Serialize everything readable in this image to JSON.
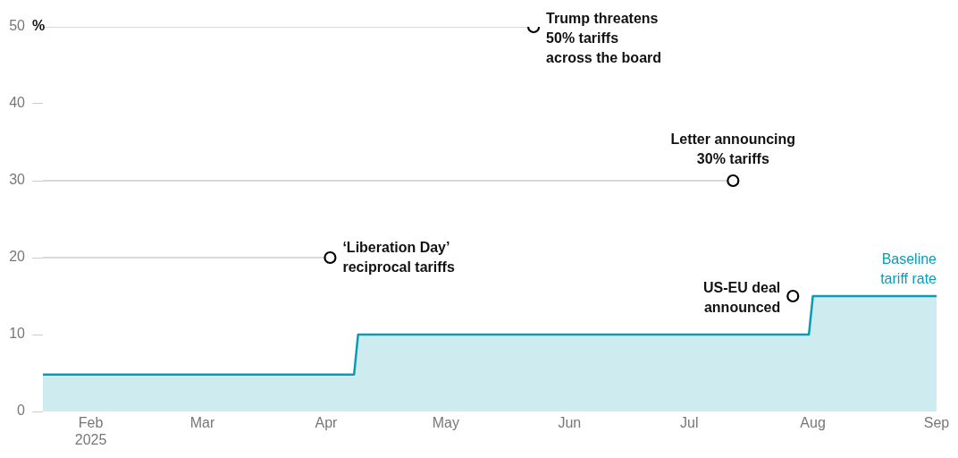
{
  "chart_data": {
    "type": "area",
    "ylabel": "%",
    "xlim": [
      "2025-01-20",
      "2025-09-01"
    ],
    "xticks": [
      {
        "value": "2025-02-01",
        "label": "Feb\n2025"
      },
      {
        "value": "2025-03-01",
        "label": "Mar"
      },
      {
        "value": "2025-04-01",
        "label": "Apr"
      },
      {
        "value": "2025-05-01",
        "label": "May"
      },
      {
        "value": "2025-06-01",
        "label": "Jun"
      },
      {
        "value": "2025-07-01",
        "label": "Jul"
      },
      {
        "value": "2025-08-01",
        "label": "Aug"
      },
      {
        "value": "2025-09-01",
        "label": "Sep"
      }
    ],
    "ylim": [
      0,
      50
    ],
    "yticks": [
      0,
      10,
      20,
      30,
      40,
      50
    ],
    "grid": false,
    "legend": false,
    "series": [
      {
        "name": "Baseline tariff rate",
        "color": "#0c9bb5",
        "x": [
          "2025-01-20",
          "2025-04-08",
          "2025-04-09",
          "2025-07-31",
          "2025-08-01",
          "2025-09-01"
        ],
        "values": [
          4.8,
          4.8,
          10,
          10,
          15,
          15
        ]
      },
      {
        "type": "line",
        "color": "#cccccc",
        "x": [
          "2025-01-20",
          "2025-04-02"
        ],
        "values": [
          20,
          20
        ]
      },
      {
        "type": "line",
        "color": "#cccccc",
        "x": [
          "2025-01-20",
          "2025-05-23"
        ],
        "values": [
          50,
          50
        ]
      },
      {
        "type": "line",
        "color": "#cccccc",
        "x": [
          "2025-01-20",
          "2025-07-12"
        ],
        "values": [
          30,
          30
        ]
      },
      {
        "type": "scatter",
        "color": "#000000",
        "marker": "circle",
        "x": [
          "2025-04-02",
          "2025-05-23",
          "2025-07-12",
          "2025-07-27"
        ],
        "values": [
          20,
          50,
          30,
          15
        ]
      }
    ],
    "annotations": [
      {
        "text": "‘Liberation Day’ reciprocal tariffs",
        "x": "2025-04-02",
        "y": 20
      },
      {
        "text": "Trump threatens 50% tariffs across the board",
        "x": "2025-05-23",
        "y": 50
      },
      {
        "text": "Letter announcing 30% tariffs",
        "x": "2025-07-12",
        "y": 30
      },
      {
        "text": "US-EU deal announced",
        "x": "2025-07-27",
        "y": 15
      }
    ]
  }
}
